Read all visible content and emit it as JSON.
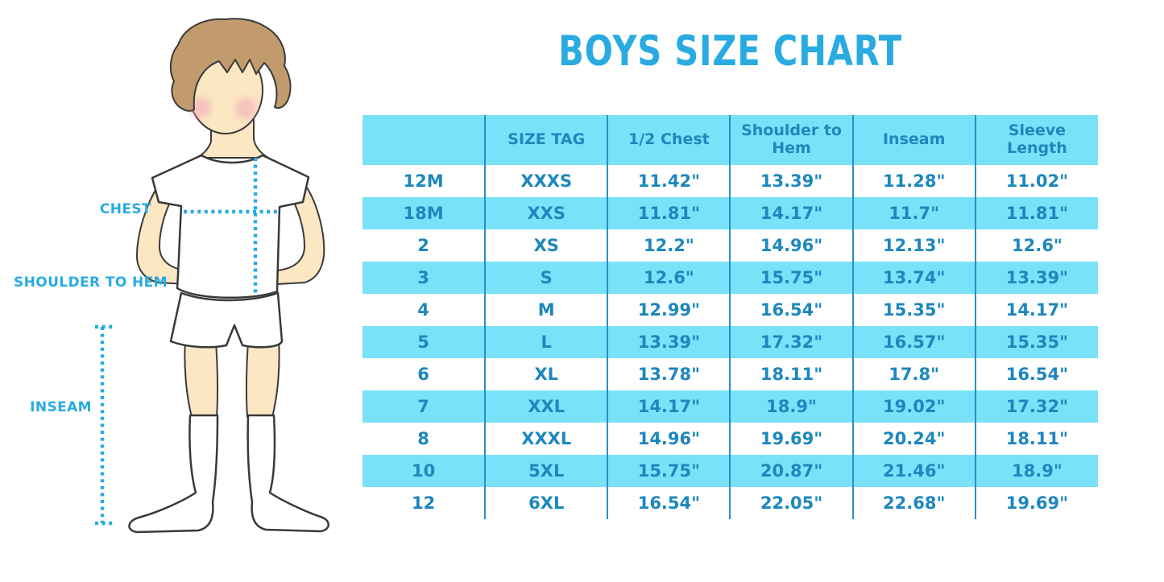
{
  "title": "BOYS SIZE CHART",
  "figure": {
    "labels": {
      "chest": "CHEST",
      "shoulder_to_hem": "SHOULDER TO HEM",
      "inseam": "INSEAM"
    }
  },
  "chart_data": {
    "type": "table",
    "title": "BOYS SIZE CHART",
    "columns": [
      "",
      "SIZE TAG",
      "1/2 Chest",
      "Shoulder to Hem",
      "Inseam",
      "Sleeve Length"
    ],
    "rows": [
      [
        "12M",
        "XXXS",
        "11.42\"",
        "13.39\"",
        "11.28\"",
        "11.02\""
      ],
      [
        "18M",
        "XXS",
        "11.81\"",
        "14.17\"",
        "11.7\"",
        "11.81\""
      ],
      [
        "2",
        "XS",
        "12.2\"",
        "14.96\"",
        "12.13\"",
        "12.6\""
      ],
      [
        "3",
        "S",
        "12.6\"",
        "15.75\"",
        "13.74\"",
        "13.39\""
      ],
      [
        "4",
        "M",
        "12.99\"",
        "16.54\"",
        "15.35\"",
        "14.17\""
      ],
      [
        "5",
        "L",
        "13.39\"",
        "17.32\"",
        "16.57\"",
        "15.35\""
      ],
      [
        "6",
        "XL",
        "13.78\"",
        "18.11\"",
        "17.8\"",
        "16.54\""
      ],
      [
        "7",
        "XXL",
        "14.17\"",
        "18.9\"",
        "19.02\"",
        "17.32\""
      ],
      [
        "8",
        "XXXL",
        "14.96\"",
        "19.69\"",
        "20.24\"",
        "18.11\""
      ],
      [
        "10",
        "5XL",
        "15.75\"",
        "20.87\"",
        "21.46\"",
        "18.9\""
      ],
      [
        "12",
        "6XL",
        "16.54\"",
        "22.05\"",
        "22.68\"",
        "19.69\""
      ]
    ],
    "layout": {
      "header_background": "#79E2F9",
      "alt_row_background": "#79E2F9",
      "grid": "vertical-only"
    }
  },
  "colors": {
    "accent": "#29ABE2",
    "table_band": "#79E2F9",
    "table_border": "#2B8EC4",
    "table_text": "#1D87BE",
    "hair": "#C19B6E",
    "skin": "#FCE7C3",
    "cheek": "#F0A3B6",
    "outline": "#3A3A3A"
  }
}
